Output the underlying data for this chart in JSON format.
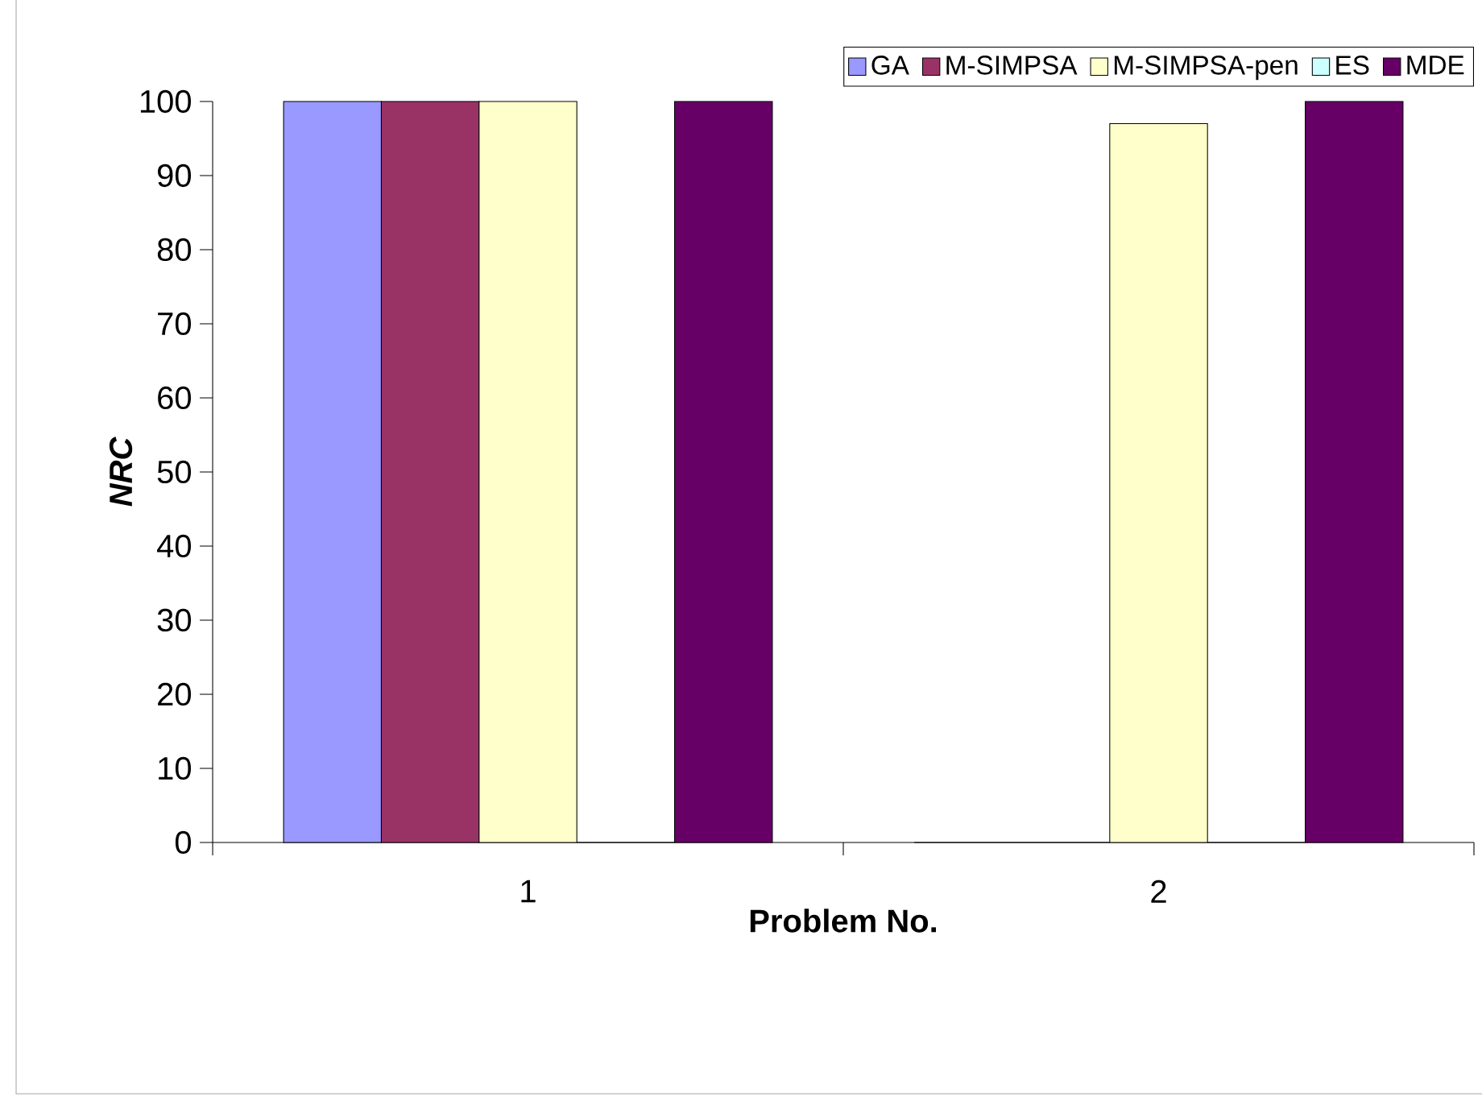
{
  "chart_data": {
    "type": "bar",
    "xlabel": "Problem No.",
    "ylabel": "NRC",
    "categories": [
      "1",
      "2"
    ],
    "series": [
      {
        "name": "GA",
        "color": "#9999ff",
        "values": [
          100,
          0
        ]
      },
      {
        "name": "M-SIMPSA",
        "color": "#993366",
        "values": [
          100,
          0
        ]
      },
      {
        "name": "M-SIMPSA-pen",
        "color": "#ffffcc",
        "values": [
          100,
          97
        ]
      },
      {
        "name": "ES",
        "color": "#ccffff",
        "values": [
          0,
          0
        ]
      },
      {
        "name": "MDE",
        "color": "#660066",
        "values": [
          100,
          100
        ]
      }
    ],
    "ylim": [
      0,
      100
    ],
    "yticks": [
      0,
      10,
      20,
      30,
      40,
      50,
      60,
      70,
      80,
      90,
      100
    ],
    "grid": false,
    "legend": "top right"
  }
}
